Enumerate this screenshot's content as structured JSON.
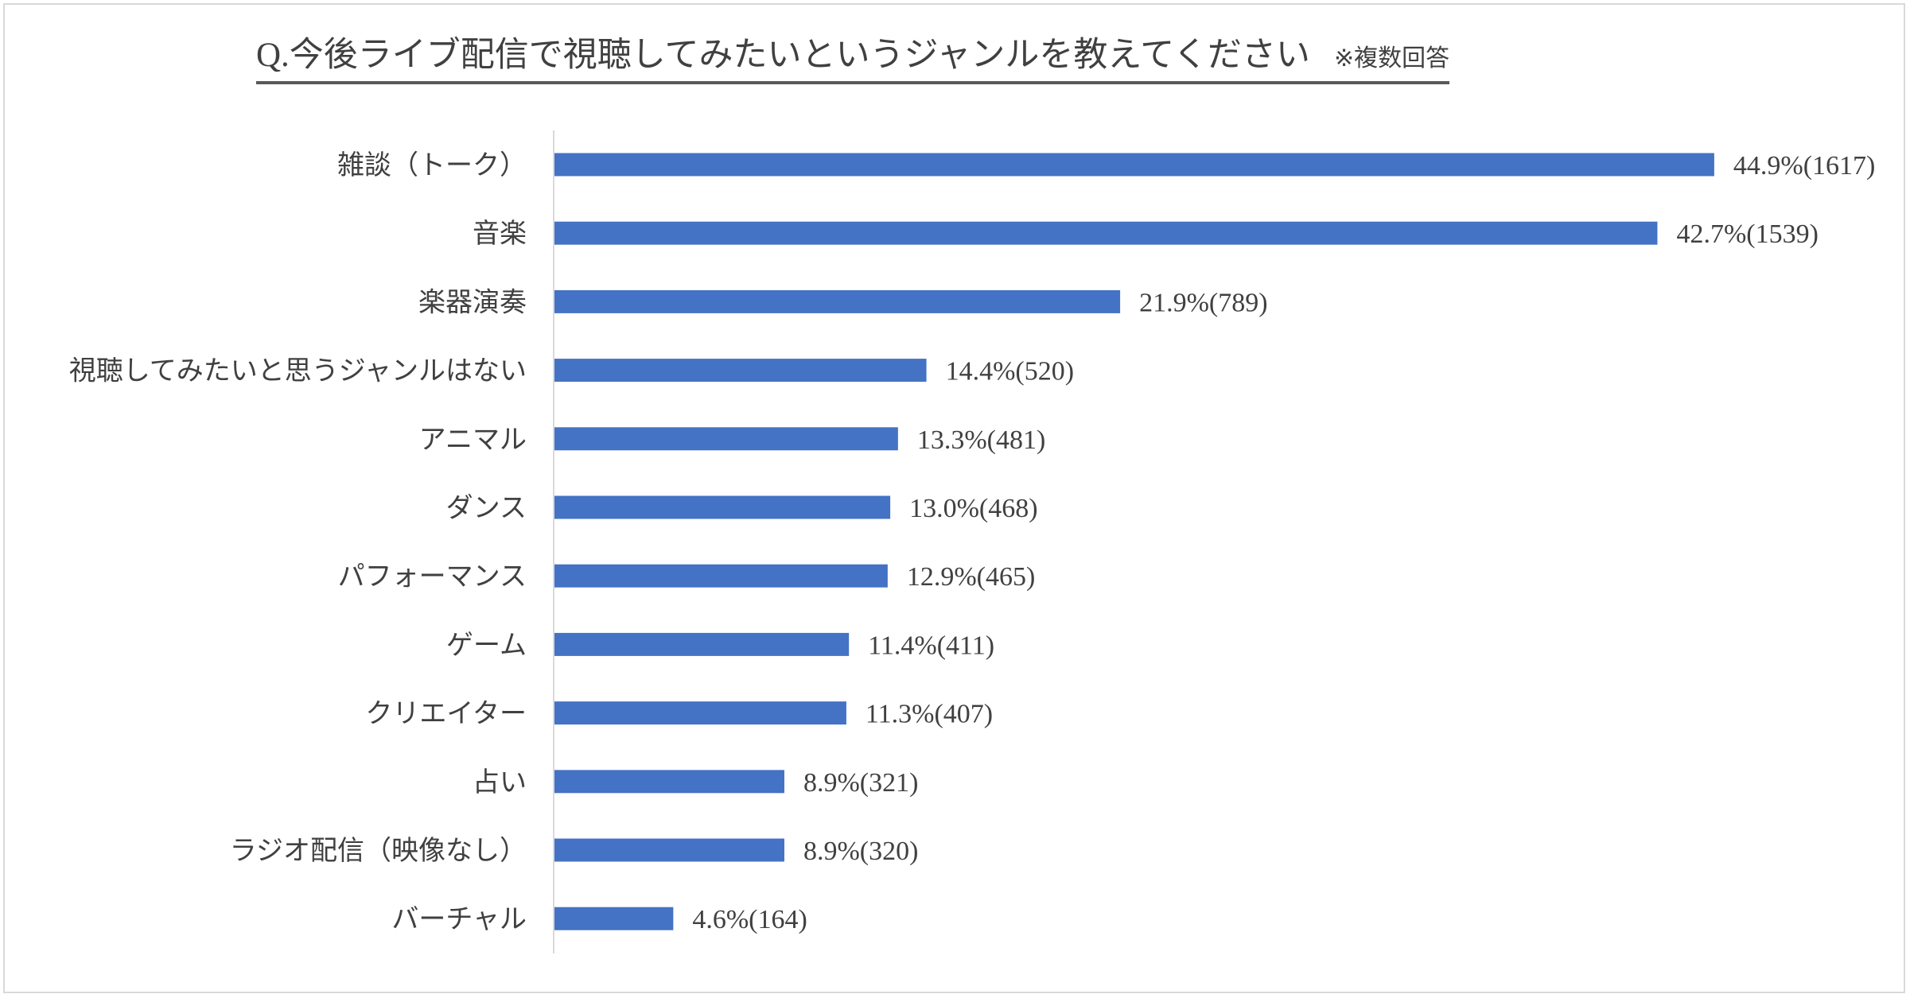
{
  "chart_data": {
    "type": "bar",
    "orientation": "horizontal",
    "title": "Q.今後ライブ配信で視聴してみたいというジャンルを教えてください",
    "subtitle": "※複数回答",
    "categories": [
      "雑談（トーク）",
      "音楽",
      "楽器演奏",
      "視聴してみたいと思うジャンルはない",
      "アニマル",
      "ダンス",
      "パフォーマンス",
      "ゲーム",
      "クリエイター",
      "占い",
      "ラジオ配信（映像なし）",
      "バーチャル"
    ],
    "values": [
      44.9,
      42.7,
      21.9,
      14.4,
      13.3,
      13.0,
      12.9,
      11.4,
      11.3,
      8.9,
      8.9,
      4.6
    ],
    "counts": [
      1617,
      1539,
      789,
      520,
      481,
      468,
      465,
      411,
      407,
      321,
      320,
      164
    ],
    "data_labels": [
      "44.9%(1617)",
      "42.7%(1539)",
      "21.9%(789)",
      "14.4%(520)",
      "13.3%(481)",
      "13.0%(468)",
      "12.9%(465)",
      "11.4%(411)",
      "11.3%(407)",
      "8.9%(321)",
      "8.9%(320)",
      "4.6%(164)"
    ],
    "xlabel": "",
    "ylabel": "",
    "xlim": [
      0,
      45
    ],
    "grid": false,
    "bar_color": "#4472c4",
    "axis_color": "#d9d9d9"
  }
}
